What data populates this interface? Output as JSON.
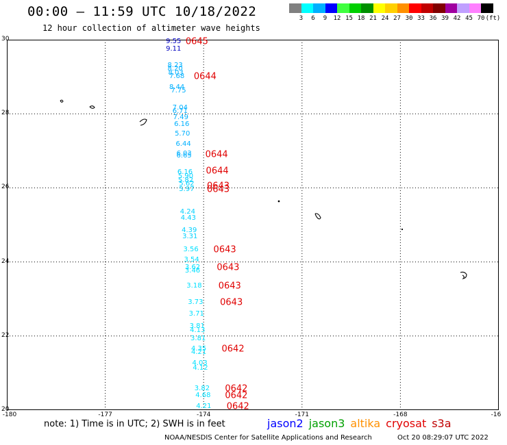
{
  "title": "00:00 — 11:59 UTC 10/18/2022",
  "subtitle": "12 hour collection of altimeter wave heights",
  "legend": {
    "colors": [
      "#808080",
      "#00ffff",
      "#00b0ff",
      "#0000ff",
      "#40ff40",
      "#00d000",
      "#009000",
      "#ffff00",
      "#ffd000",
      "#ff9000",
      "#ff0000",
      "#c00000",
      "#800000",
      "#a000a0",
      "#c0a0ff",
      "#ff80ff",
      "#000000"
    ],
    "ticks": [
      "3",
      "6",
      "9",
      "12",
      "15",
      "18",
      "21",
      "24",
      "27",
      "30",
      "33",
      "36",
      "39",
      "42",
      "45",
      "70",
      "(ft)"
    ]
  },
  "axes": {
    "lat_labels": [
      "30",
      "28",
      "26",
      "24",
      "22",
      "20"
    ],
    "lon_labels": [
      "-180",
      "-177",
      "-174",
      "-171",
      "-168",
      "-16"
    ]
  },
  "observations": [
    {
      "v": "9.55",
      "lat": 29.95,
      "lon": -175.15,
      "c": "#0000c0"
    },
    {
      "v": "9.11",
      "lat": 29.75,
      "lon": -175.15,
      "c": "#0000c0"
    },
    {
      "v": "8.23",
      "lat": 29.3,
      "lon": -175.1,
      "c": "#00b0ff"
    },
    {
      "v": "8.20",
      "lat": 29.2,
      "lon": -175.1,
      "c": "#00b0ff"
    },
    {
      "v": "8.03",
      "lat": 29.1,
      "lon": -175.08,
      "c": "#00b0ff"
    },
    {
      "v": "7.68",
      "lat": 29.0,
      "lon": -175.05,
      "c": "#00b0ff"
    },
    {
      "v": "8.44",
      "lat": 28.7,
      "lon": -175.05,
      "c": "#00b0ff"
    },
    {
      "v": "7.75",
      "lat": 28.62,
      "lon": -175.0,
      "c": "#00b0ff"
    },
    {
      "v": "7.04",
      "lat": 28.15,
      "lon": -174.95,
      "c": "#00b0ff"
    },
    {
      "v": "6.71",
      "lat": 28.05,
      "lon": -174.95,
      "c": "#00b0ff"
    },
    {
      "v": "7.49",
      "lat": 27.9,
      "lon": -174.93,
      "c": "#00b0ff"
    },
    {
      "v": "6.16",
      "lat": 27.7,
      "lon": -174.9,
      "c": "#00b0ff"
    },
    {
      "v": "5.70",
      "lat": 27.45,
      "lon": -174.88,
      "c": "#00b0ff"
    },
    {
      "v": "6.44",
      "lat": 27.18,
      "lon": -174.85,
      "c": "#00b0ff"
    },
    {
      "v": "6.03",
      "lat": 26.92,
      "lon": -174.83,
      "c": "#00b0ff"
    },
    {
      "v": "6.65",
      "lat": 26.85,
      "lon": -174.83,
      "c": "#00b0ff"
    },
    {
      "v": "6.16",
      "lat": 26.42,
      "lon": -174.8,
      "c": "#00d0ff"
    },
    {
      "v": "5.90",
      "lat": 26.3,
      "lon": -174.78,
      "c": "#00d0ff"
    },
    {
      "v": "5.82",
      "lat": 26.2,
      "lon": -174.78,
      "c": "#00d0ff"
    },
    {
      "v": "5.62",
      "lat": 26.1,
      "lon": -174.75,
      "c": "#00d0ff"
    },
    {
      "v": "5.97",
      "lat": 25.95,
      "lon": -174.75,
      "c": "#00d0ff"
    },
    {
      "v": "4.24",
      "lat": 25.35,
      "lon": -174.72,
      "c": "#00d0ff"
    },
    {
      "v": "4.43",
      "lat": 25.18,
      "lon": -174.7,
      "c": "#00d0ff"
    },
    {
      "v": "4.39",
      "lat": 24.85,
      "lon": -174.67,
      "c": "#00d0ff"
    },
    {
      "v": "3.31",
      "lat": 24.68,
      "lon": -174.65,
      "c": "#00d0ff"
    },
    {
      "v": "3.56",
      "lat": 24.33,
      "lon": -174.62,
      "c": "#00e0ff"
    },
    {
      "v": "3.54",
      "lat": 24.05,
      "lon": -174.6,
      "c": "#00e0ff"
    },
    {
      "v": "3.62",
      "lat": 23.85,
      "lon": -174.57,
      "c": "#00e0ff"
    },
    {
      "v": "3.46",
      "lat": 23.75,
      "lon": -174.57,
      "c": "#00e0ff"
    },
    {
      "v": "3.18",
      "lat": 23.35,
      "lon": -174.52,
      "c": "#00e0ff"
    },
    {
      "v": "3.73",
      "lat": 22.9,
      "lon": -174.48,
      "c": "#00e0ff"
    },
    {
      "v": "3.71",
      "lat": 22.58,
      "lon": -174.45,
      "c": "#00e0ff"
    },
    {
      "v": "3.81",
      "lat": 22.25,
      "lon": -174.43,
      "c": "#00e0ff"
    },
    {
      "v": "4.13",
      "lat": 22.15,
      "lon": -174.42,
      "c": "#00e0ff"
    },
    {
      "v": "3.81",
      "lat": 21.92,
      "lon": -174.4,
      "c": "#00e0ff"
    },
    {
      "v": "4.35",
      "lat": 21.65,
      "lon": -174.38,
      "c": "#00e0ff"
    },
    {
      "v": "4.21",
      "lat": 21.55,
      "lon": -174.38,
      "c": "#00e0ff"
    },
    {
      "v": "4.03",
      "lat": 21.25,
      "lon": -174.35,
      "c": "#00e0ff"
    },
    {
      "v": "4.12",
      "lat": 21.12,
      "lon": -174.33,
      "c": "#00e0ff"
    },
    {
      "v": "3.82",
      "lat": 20.58,
      "lon": -174.28,
      "c": "#00e0ff"
    },
    {
      "v": "4.68",
      "lat": 20.38,
      "lon": -174.25,
      "c": "#00e0ff"
    },
    {
      "v": "4.21",
      "lat": 20.1,
      "lon": -174.23,
      "c": "#00e0ff"
    }
  ],
  "time_labels": [
    {
      "t": "0645",
      "lat": 29.95,
      "lon": -174.55
    },
    {
      "t": "0644",
      "lat": 29.0,
      "lon": -174.3
    },
    {
      "t": "0644",
      "lat": 26.9,
      "lon": -173.95
    },
    {
      "t": "0644",
      "lat": 26.45,
      "lon": -173.93
    },
    {
      "t": "0643",
      "lat": 26.05,
      "lon": -173.9
    },
    {
      "t": "0643",
      "lat": 25.95,
      "lon": -173.9
    },
    {
      "t": "0643",
      "lat": 24.33,
      "lon": -173.7
    },
    {
      "t": "0643",
      "lat": 23.85,
      "lon": -173.6
    },
    {
      "t": "0643",
      "lat": 23.35,
      "lon": -173.55
    },
    {
      "t": "0643",
      "lat": 22.9,
      "lon": -173.5
    },
    {
      "t": "0642",
      "lat": 21.65,
      "lon": -173.45
    },
    {
      "t": "0642",
      "lat": 20.58,
      "lon": -173.35
    },
    {
      "t": "0642",
      "lat": 20.38,
      "lon": -173.35
    },
    {
      "t": "0642",
      "lat": 20.1,
      "lon": -173.3
    }
  ],
  "note": "note: 1) Time is in UTC; 2) SWH is in feet",
  "satellites": [
    {
      "name": "jason2",
      "color": "#0000ff"
    },
    {
      "name": "jason3",
      "color": "#00a000"
    },
    {
      "name": "altika",
      "color": "#ff9000"
    },
    {
      "name": "cryosat",
      "color": "#e00000"
    },
    {
      "name": "s3a",
      "color": "#c00000"
    }
  ],
  "credit": "NOAA/NESDIS Center for Satellite Applications and Research",
  "timestamp": "Oct 20 08:29:07 UTC 2022"
}
